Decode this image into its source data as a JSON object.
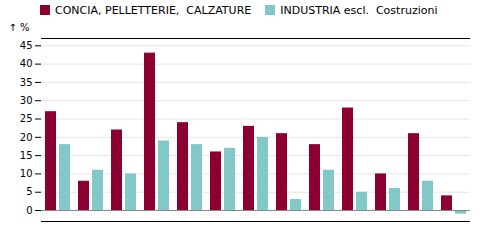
{
  "chart_data": {
    "type": "bar",
    "categories": [
      null,
      null,
      null,
      null,
      null,
      null,
      null,
      null,
      null,
      null,
      null,
      null,
      null
    ],
    "series": [
      {
        "name": "CONCIA, PELLETTERIE,  CALZATURE",
        "color": "#8B0030",
        "values": [
          27,
          8,
          22,
          43,
          24,
          16,
          23,
          21,
          18,
          28,
          10,
          21,
          4
        ]
      },
      {
        "name": "INDUSTRIA escl.  Costruzioni",
        "color": "#82C8C8",
        "values": [
          18,
          11,
          10,
          19,
          18,
          17,
          20,
          3,
          11,
          5,
          6,
          8,
          -1
        ]
      }
    ],
    "ylabel": "%",
    "ylim": [
      -3,
      47
    ],
    "yticks": [
      0,
      5,
      10,
      15,
      20,
      25,
      30,
      35,
      40,
      45
    ],
    "grid": true,
    "legend": "upper left",
    "tick_labels": "y"
  }
}
